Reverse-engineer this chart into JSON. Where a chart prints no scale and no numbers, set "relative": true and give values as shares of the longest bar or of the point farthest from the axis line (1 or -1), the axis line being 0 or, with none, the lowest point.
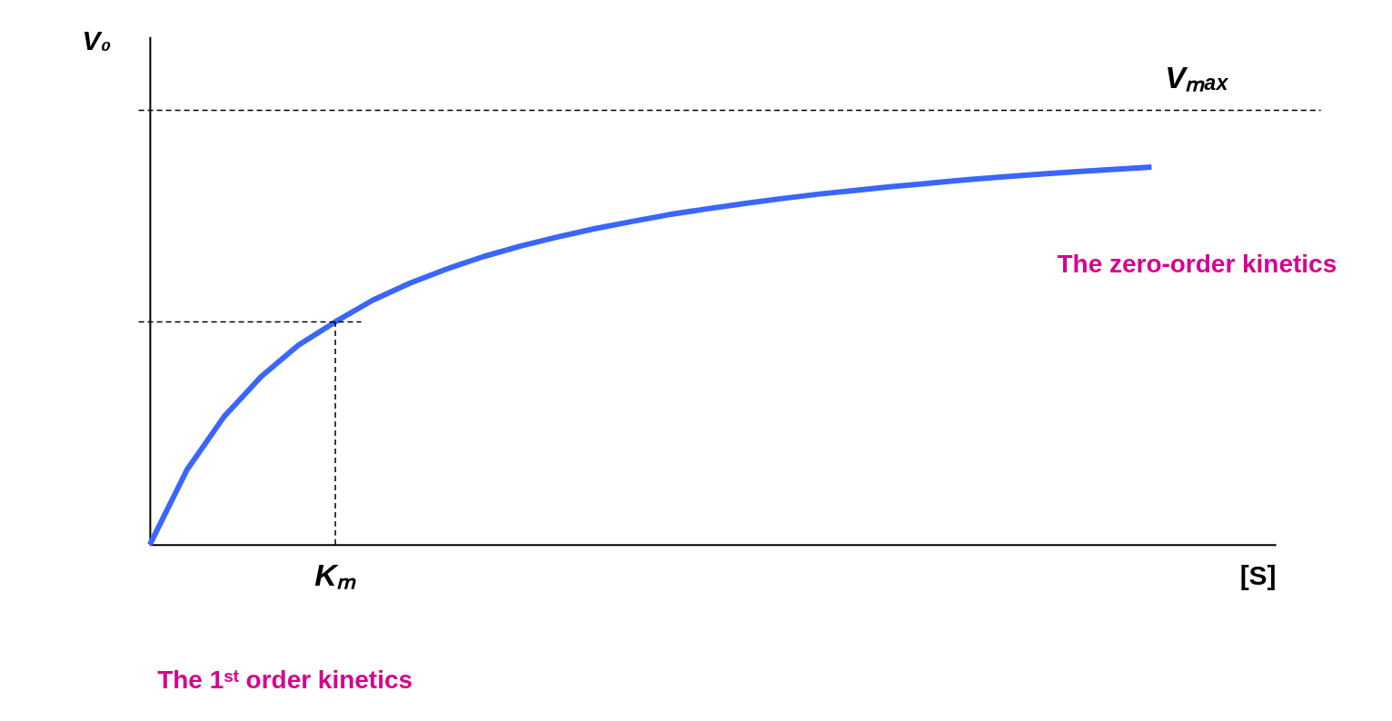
{
  "chart_data": {
    "type": "line",
    "relative": true,
    "xlabel": "[S]",
    "ylabel": "V₀",
    "categories": [
      null,
      null,
      null,
      null,
      null,
      null,
      null,
      null,
      null,
      null,
      null,
      null,
      null,
      null,
      null,
      null,
      null,
      null,
      null,
      null,
      null,
      null,
      null,
      null,
      null,
      null,
      null,
      null
    ],
    "series": [
      {
        "color": "#3a66ff",
        "values": [
          0,
          0.198,
          0.339,
          0.445,
          0.528,
          0.59,
          0.647,
          0.692,
          0.73,
          0.763,
          0.791,
          0.815,
          0.837,
          0.856,
          0.874,
          0.889,
          0.903,
          0.916,
          0.928,
          0.938,
          0.948,
          0.957,
          0.966,
          0.974,
          0.981,
          0.988,
          0.994,
          1.0
        ]
      }
    ],
    "tick_labels": false,
    "line_style": "solid",
    "ref_lines": [
      {
        "axis": "y",
        "value": 1.15,
        "label": "Vₘₐₓ",
        "line_style": "dashed",
        "color": "#000000"
      },
      {
        "axis": "y",
        "value": 0.59,
        "label": null,
        "line_style": "dashed",
        "color": "#000000"
      }
    ],
    "annotations": [
      {
        "text": "Kₘ",
        "y": 0.59
      },
      "The zero-order kinetics",
      "The 1ˢᵗ order kinetics"
    ]
  }
}
